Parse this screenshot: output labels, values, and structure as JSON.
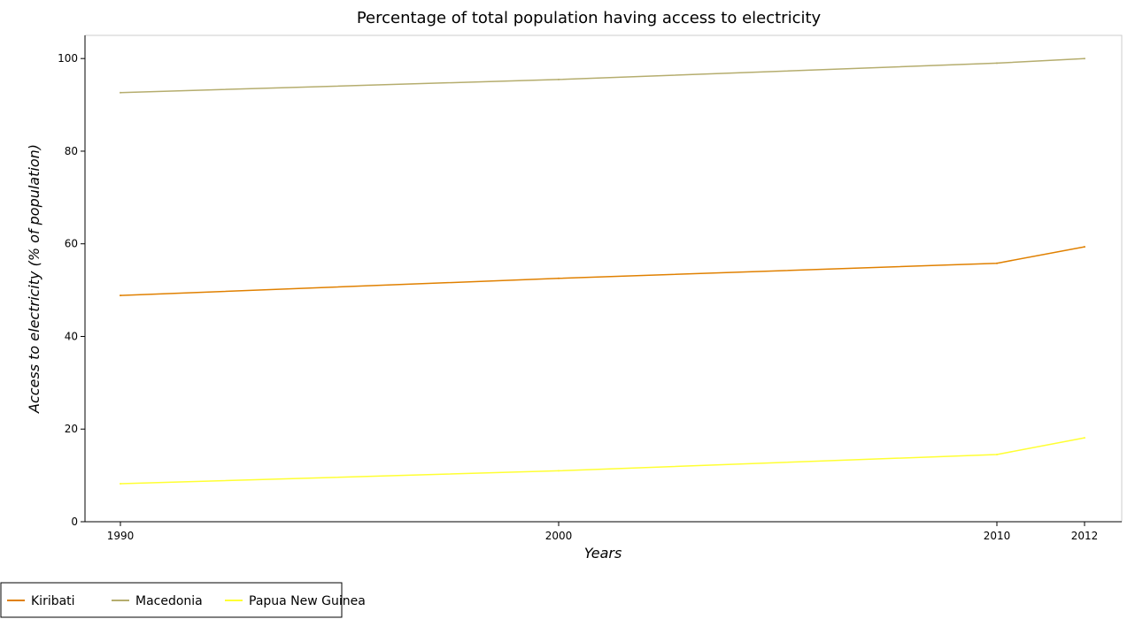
{
  "chart_data": {
    "type": "line",
    "title": "Percentage of total population having access to electricity",
    "xlabel": "Years",
    "ylabel": "Access to electricity (% of population)",
    "categories": [
      "1990",
      "2000",
      "2010",
      "2012"
    ],
    "ylim": [
      0,
      105
    ],
    "yticks": [
      0,
      20,
      40,
      60,
      80,
      100
    ],
    "grid": false,
    "legend_position": "bottom-left",
    "series": [
      {
        "name": "Kiribati",
        "color": "#e08000",
        "values": [
          48.86,
          52.54,
          55.8,
          59.36
        ]
      },
      {
        "name": "Macedonia",
        "color": "#b5ad6e",
        "values": [
          92.64,
          95.47,
          99.0,
          100.0
        ]
      },
      {
        "name": "Papua New Guinea",
        "color": "#ffff33",
        "values": [
          8.21,
          11.0,
          14.5,
          18.12
        ]
      }
    ]
  }
}
